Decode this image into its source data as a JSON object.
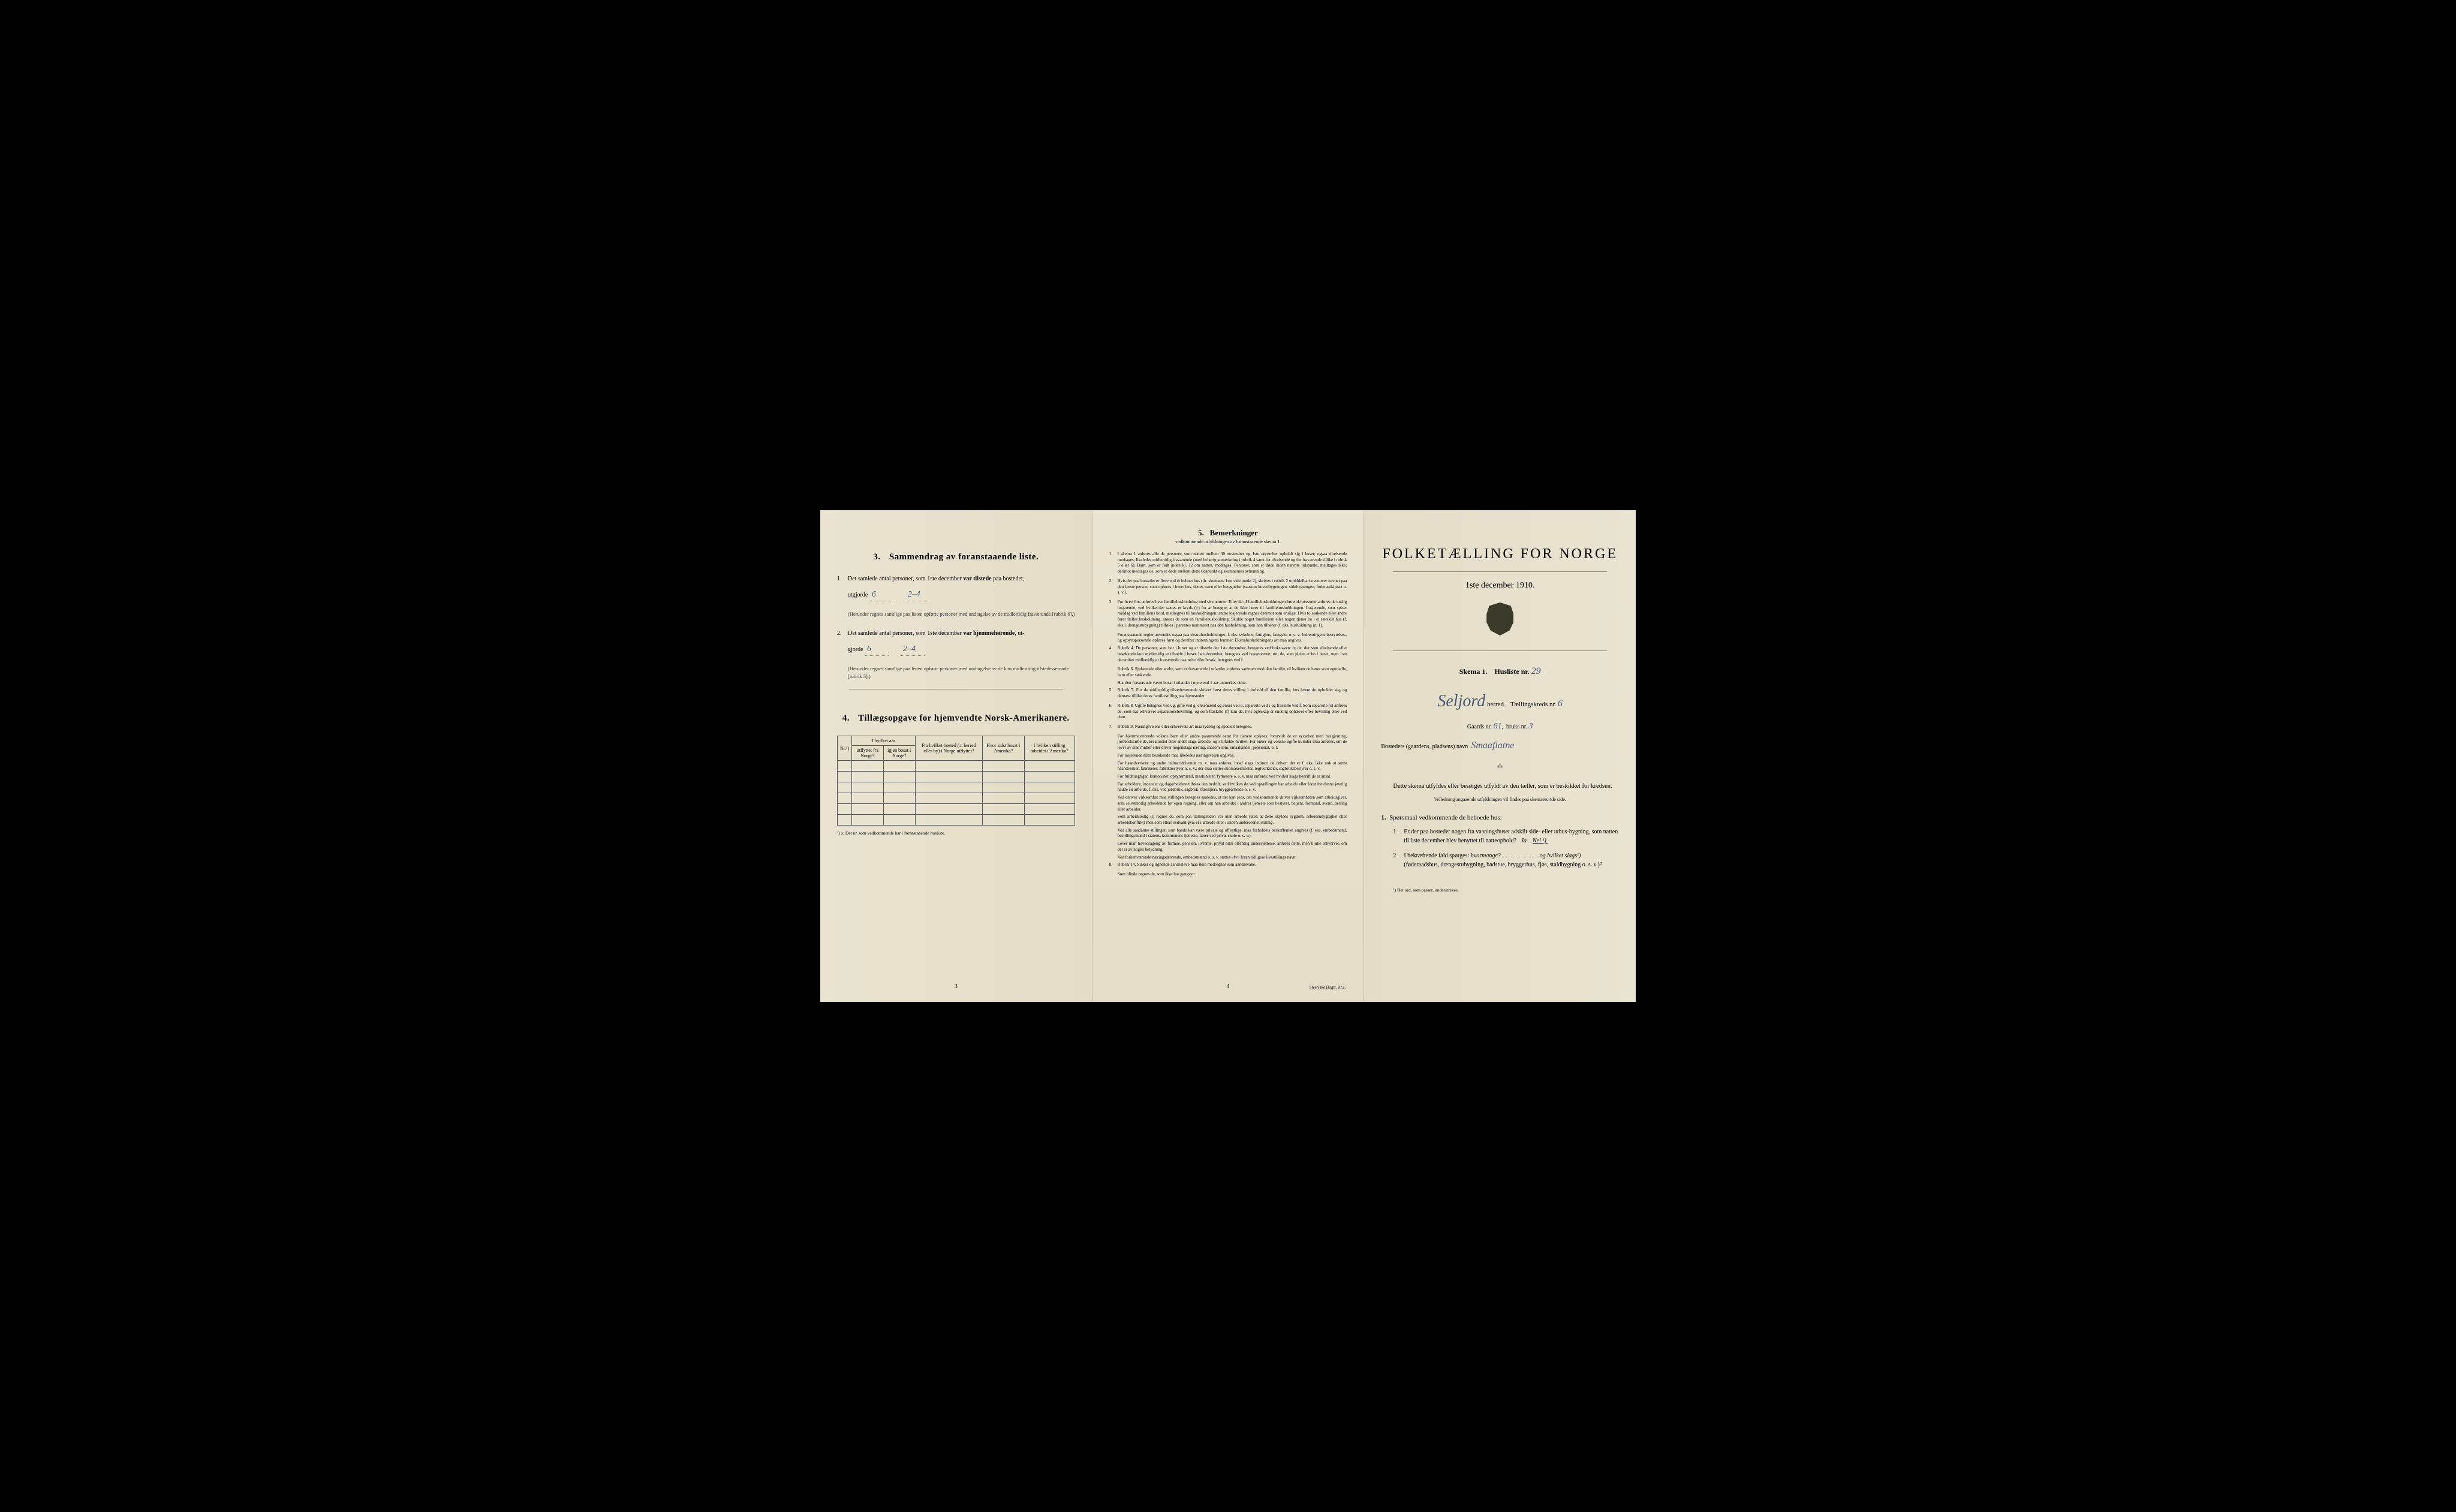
{
  "colors": {
    "paper": "#e8e2d0",
    "ink": "#1a1a1a",
    "handwriting": "#4a5a7a",
    "border": "#555"
  },
  "page_left": {
    "section3": {
      "num": "3.",
      "title": "Sammendrag av foranstaaende liste.",
      "q1_num": "1.",
      "q1_text_a": "Det samlede antal personer, som 1ste december ",
      "q1_text_b": "var tilstede",
      "q1_text_c": " paa bostedet,",
      "q1_utgjorde": "utgjorde",
      "q1_val1": "6",
      "q1_val2": "2–4",
      "q1_sub": "(Herunder regnes samtlige paa listen opførte personer med undtagelse av de midlertidig fraværende [rubrik 6].)",
      "q2_num": "2.",
      "q2_text_a": "Det samlede antal personer, som 1ste december ",
      "q2_text_b": "var hjemmehørende",
      "q2_text_c": ", ut-",
      "q2_utgjorde": "gjorde",
      "q2_val1": "6",
      "q2_val2": "2–4",
      "q2_sub": "(Herunder regnes samtlige paa listen opførte personer med undtagelse av de kun midlertidig tilstedeværende [rubrik 5].)"
    },
    "section4": {
      "num": "4.",
      "title": "Tillægsopgave for hjemvendte Norsk-Amerikanere.",
      "headers": {
        "nr": "Nr.¹)",
        "col1a": "I hvilket aar",
        "col1b_left": "utflyttet fra Norge?",
        "col1b_right": "igjen bosat i Norge?",
        "col2": "Fra hvilket bosted (ɔ: herred eller by) i Norge utflyttet?",
        "col3": "Hvor sidst bosat i Amerika?",
        "col4": "I hvilken stilling arbeidet i Amerika?"
      },
      "note": "¹) ɔ: Det nr. som vedkommende har i foranstaaende husliste.",
      "empty_rows": 6
    },
    "page_num": "3"
  },
  "page_middle": {
    "title_num": "5.",
    "title": "Bemerkninger",
    "subtitle": "vedkommende utfyldningen av foranstaaende skema 1.",
    "items": [
      {
        "num": "1.",
        "text": "I skema 1 anføres alle de personer, som natten mellem 30 november og 1ste december opholdt sig i huset; ogsaa tilreisende medtages; likeledes midlertidig fraværende (med behørig anmerkning i rubrik 4 samt for tilreisende og for fraværende tillike i rubrik 5 eller 6). Barn, som er født inden kl. 12 om natten, medtages. Personer, som er døde inden nævnte tidspunkt, medtages ikke; derimot medtages de, som er døde mellem dette tidspunkt og skemaernes avhentning."
      },
      {
        "num": "2.",
        "text": "Hvis der paa bostedet er flere end ét beboet hus (jfr. skemaets 1ste side punkt 2), skrives i rubrik 2 umiddelbart ovenover navnet paa den første person, som opføres i hvert hus, dettes navn eller betegnelse (saasom hovedbygningen, sidebygningen, føderaadshuset o. s. v.)."
      },
      {
        "num": "3.",
        "text": "For hvert hus anføres hver familiehusholdning med sit nummer. Efter de til familiehusholdningen hørende personer anføres de enslig losjerende, ved hvilke der sættes et kryds (×) for at betegne, at de ikke hører til familiehusholdningen. Losjerende, som spiser middag ved familiens bord, medregnes til husholdningen; andre losjerende regnes derimot som enslige. Hvis to søskende eller andre fører fælles husholdning, ansees de som en familiehusholdning. Skulde noget familielem eller nogen tjener bo i et særskilt hus (f. eks. i drengestubygning) tilføies i parentes nummeret paa den husholdning, som han tilhører (f. eks. husholdning nr. 1)."
      },
      {
        "num": "",
        "text": "Foranstaaende regler anvendes ogsaa paa ekstrahusholdninger, f. eks. sykehus, fattighus, fængsler o. s. v. Indretningens bestyrelses- og opsynspersonale opføres først og derefter indretningens lemmer. Ekstrahusholdningens art maa angives."
      },
      {
        "num": "4.",
        "text": "Rubrik 4. De personer, som bor i huset og er tilstede der 1ste december, betegnes ved bokstaven: b; de, der som tilreisende eller besøkende kun midlertidig er tilstede i huset 1ste december, betegnes ved bokstaverne: mt; de, som pleier at bo i huset, men 1ste december midlertidig er fraværende paa reise eller besøk, betegnes ved f."
      },
      {
        "num": "",
        "text": "Rubrik 6. Sjøfarende eller andre, som er fraværende i utlandet, opføres sammen med den familie, til hvilken de hører som egtefælle, barn eller søskende."
      },
      {
        "num": "",
        "text": "Har den fraværende været bosat i utlandet i mere end 1 aar anmerkes dette."
      },
      {
        "num": "5.",
        "text": "Rubrik 7. For de midlertidig tilstedeværende skrives først deres stilling i forhold til den familie, hos hvem de opholder sig, og dernæst tillike deres familiestilling paa hjemstedet."
      },
      {
        "num": "6.",
        "text": "Rubrik 8. Ugifte betegnes ved ug, gifte ved g, enkemænd og enker ved e, separerte ved s og fraskilte ved f. Som separerte (s) anføres de, som har erhvervet separationsbevilling, og som fraskilte (f) kun de, hvis egteskap er endelig ophævet efter bevilling eller ved dom."
      },
      {
        "num": "7.",
        "text": "Rubrik 9. Næringsveiens eller erhvervets art maa tydelig og specielt betegnes."
      },
      {
        "num": "",
        "text": "For hjemmeværende voksne barn eller andre paarørende samt for tjenere oplyses, hvorvidt de er sysselsat med husgjerning, jordbruksarbeide, kreaturstel eller andet slags arbeide, og i tilfælde hvilket. For enker og voksne ugifte kvinder maa anføres, om de lever av sine midler eller driver nogenslags næring, saasom søm, smaahandel, pensionat, o. l."
      },
      {
        "num": "",
        "text": "For losjerende eller besøkende maa likeledes næringsveien opgives."
      },
      {
        "num": "",
        "text": "For haandverkere og andre industridrivende m. v. maa anføres, hvad slags industri de driver; det er f. eks. ikke nok at sætte haandverker, fabrikeier, fabrikbestyrer o. s. v.; der maa sættes skomakermester, teglverkseier, sagbruksbestyrer o. s. v."
      },
      {
        "num": "",
        "text": "For fuldmægtiger, kontorister, opsynsmænd, maskinister, fyrbøtere o. s. v. maa anføres, ved hvilket slags bedrift de er ansat."
      },
      {
        "num": "",
        "text": "For arbeidere, inderster og dagarbeidere tilføies den bedrift, ved hvilken de ved optællingen har arbeide eller forut for denne jevnlig hadde sit arbeide, f. eks. ved jordbruk, sagbruk, træsliperi, bryggearbeide o. s. v."
      },
      {
        "num": "",
        "text": "Ved enhver virksomhet maa stillingen betegnes saaledes, at det kan sees, om vedkommende driver virksomheten som arbeidsgiver, som selvstændig arbeidende for egen regning, eller om han arbeider i andres tjeneste som bestyrer, betjent, formand, svend, lærling eller arbeider."
      },
      {
        "num": "",
        "text": "Som arbeidsledig (l) regnes de, som paa tællingstiden var uten arbeide (uten at dette skyldes sygdom, arbeidsudygtighet eller arbeidskonflikt) men som ellers sedvanligvis er i arbeide eller i anden underordnet stilling."
      },
      {
        "num": "",
        "text": "Ved alle saadanne stillinger, som baade kan være private og offentlige, maa forholdets beskaffenhet angives (f. eks. embedsmand, bestillingsmand i statens, kommunens tjeneste, lærer ved privat skole o. s. v.)."
      },
      {
        "num": "",
        "text": "Lever man hovedsagelig av formue, pension, livrente, privat eller offentlig understøttelse, anføres dette, men tillike erhvervet, om det er av nogen betydning."
      },
      {
        "num": "",
        "text": "Ved forhenværende næringsdrivende, embedsmænd o. s. v. sættes «fv» foran tidligere livsstillings navn."
      },
      {
        "num": "8.",
        "text": "Rubrik 14. Sinker og lignende aandssløve maa ikke medregnes som aandssvake."
      },
      {
        "num": "",
        "text": "Som blinde regnes de, som ikke har gangsyn."
      }
    ],
    "page_num": "4",
    "printer": "Steen'ske Bogtr. Kr.a."
  },
  "page_right": {
    "main_title": "FOLKETÆLLING FOR NORGE",
    "date": "1ste december 1910.",
    "skema_label": "Skema 1.",
    "husliste_label": "Husliste nr.",
    "husliste_val": "29",
    "herred_val": "Seljord",
    "herred_label": "herred.",
    "kreds_label": "Tællingskreds nr.",
    "kreds_val": "6",
    "gaards_label": "Gaards nr.",
    "gaards_val": "61",
    "bruks_label": "bruks nr.",
    "bruks_val": "3",
    "bosted_label": "Bostedets (gaardens, pladsens) navn",
    "bosted_val": "Smaaflatne",
    "info_para": "Dette skema utfyldes eller besørges utfyldt av den tæller, som er beskikket for kredsen.",
    "info_small": "Veiledning angaaende utfyldningen vil findes paa skemaets 4de side.",
    "sporsmaal_num": "1.",
    "sporsmaal_text": "Spørsmaal vedkommende de beboede hus:",
    "sp1_num": "1.",
    "sp1_text": "Er der paa bostedet nogen fra vaaningshuset adskilt side- eller uthus-bygning, som natten til 1ste december blev benyttet til natteophold?",
    "sp1_ja": "Ja.",
    "sp1_nei": "Nei ¹).",
    "sp2_num": "2.",
    "sp2_text_a": "I bekræftende fald spørges: ",
    "sp2_text_b": "hvormange?",
    "sp2_text_c": "og hvilket slags¹)",
    "sp2_text_d": "(føderaadshus, drengestubygning, badstue, bryggerhus, fjøs, staldbygning o. s. v.)?",
    "footnote": "¹) Det ord, som passer, understrekes."
  }
}
